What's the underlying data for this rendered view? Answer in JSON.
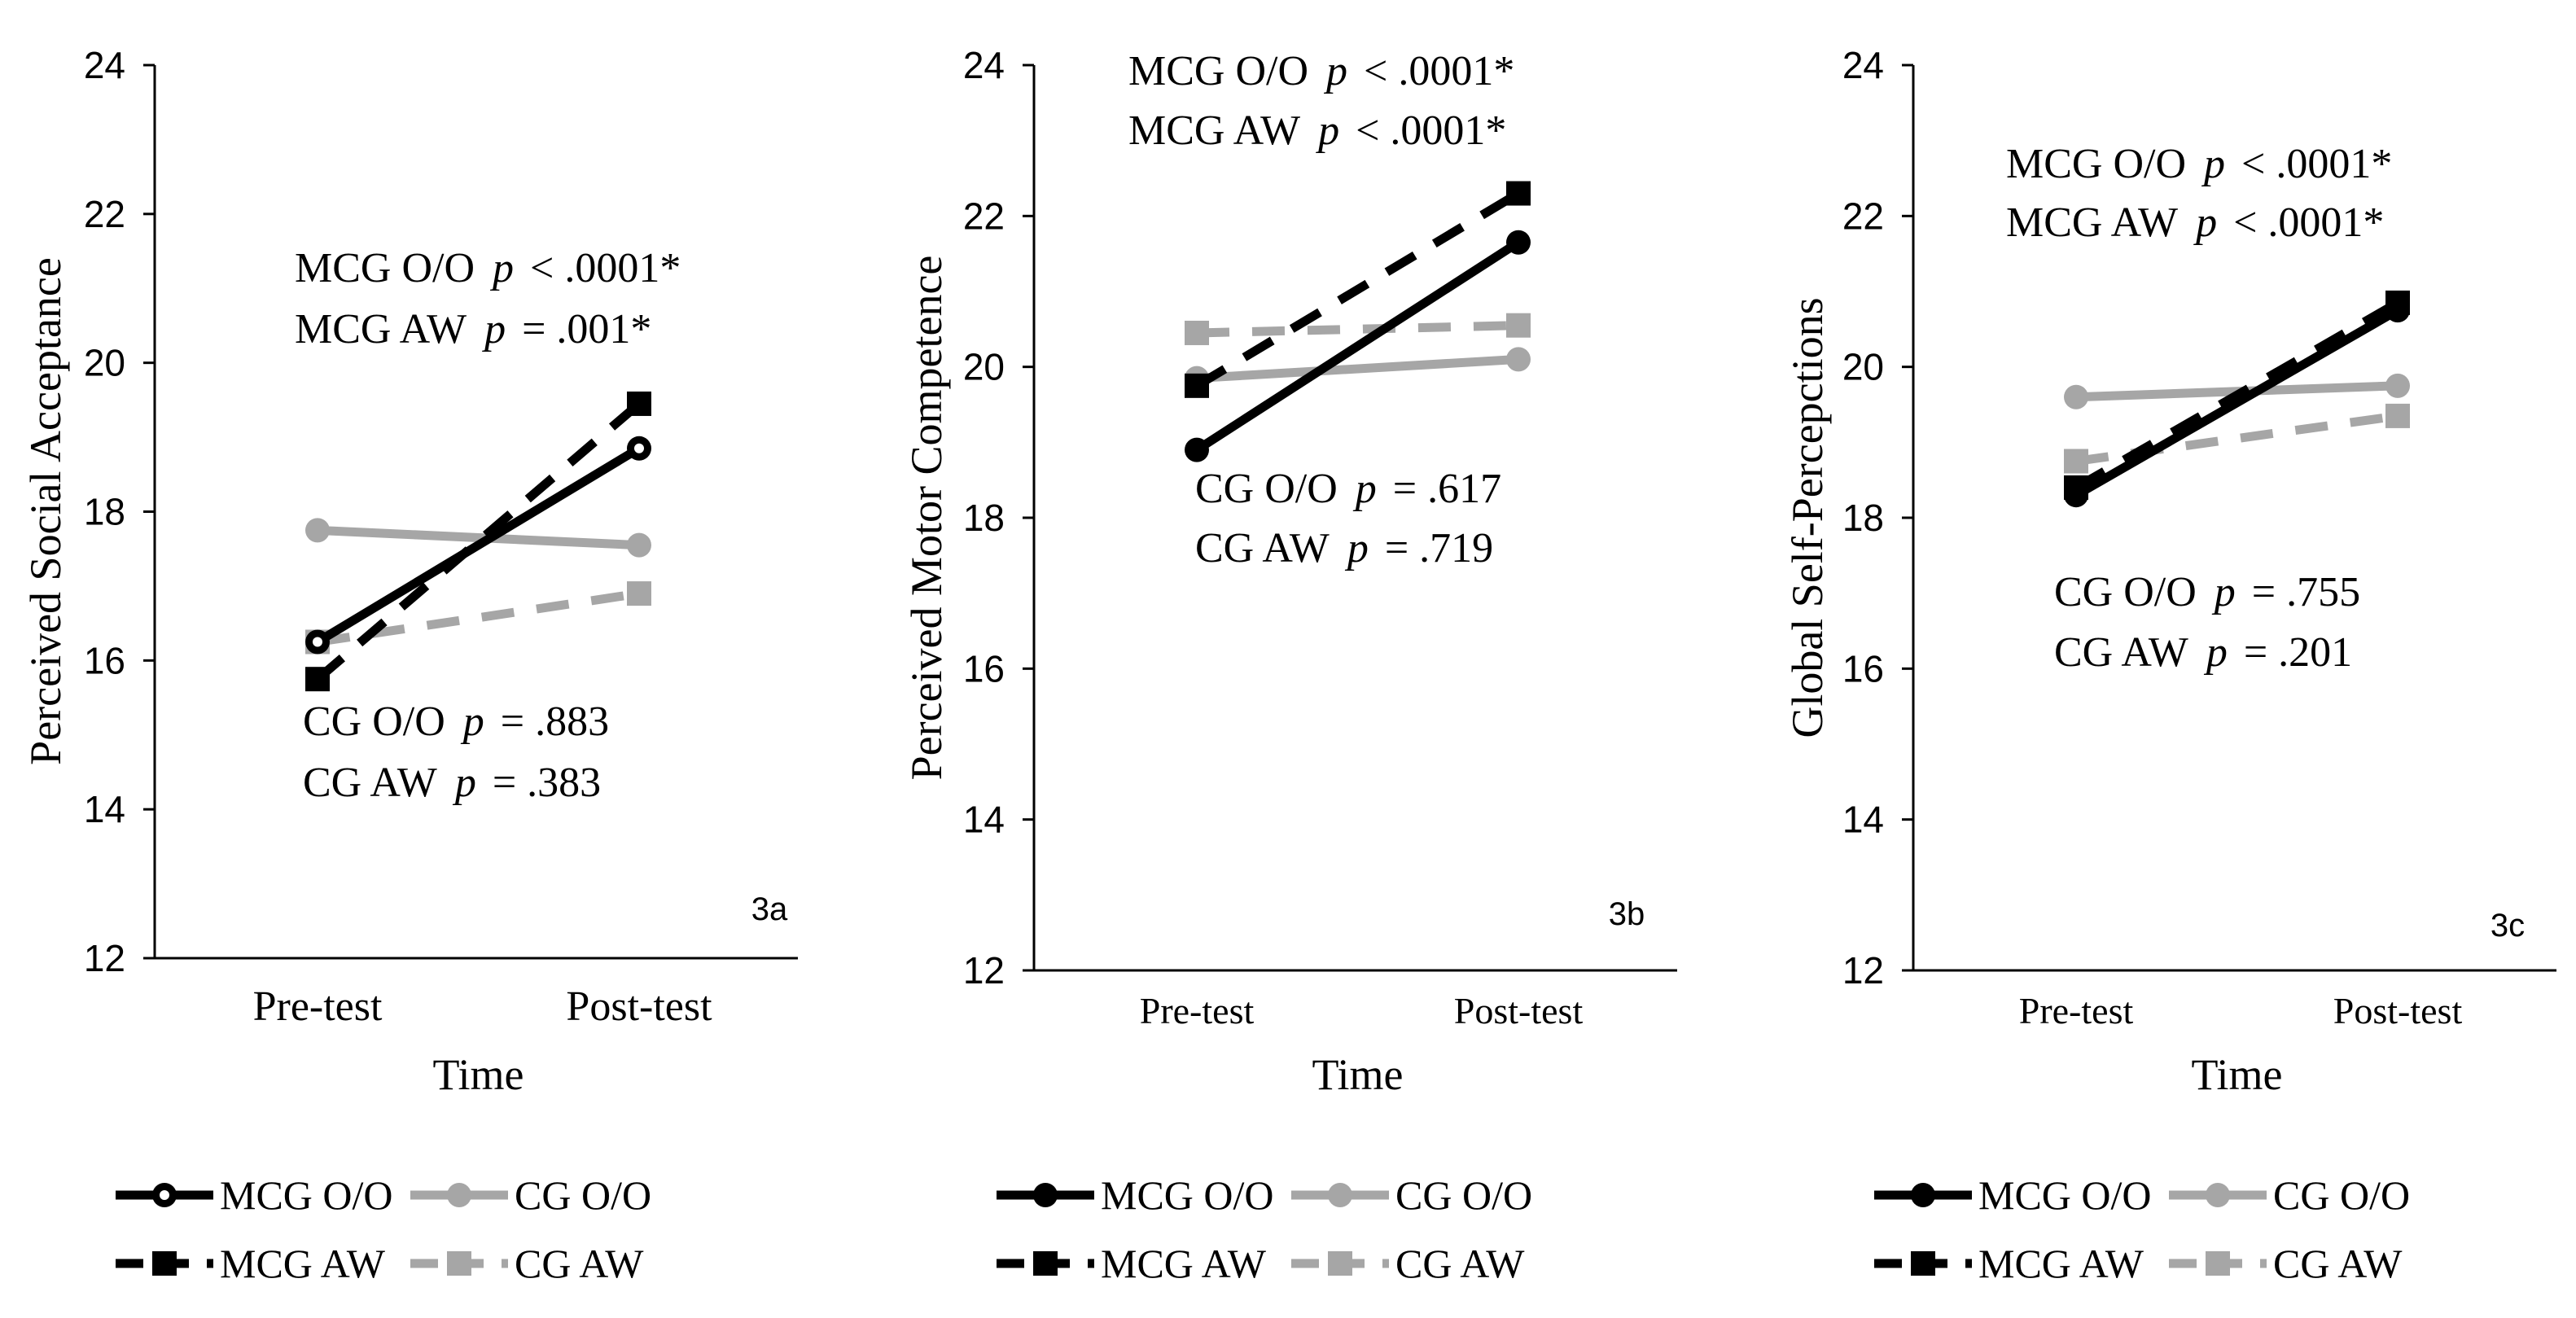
{
  "chart_data": [
    {
      "type": "line",
      "panel_label": "3a",
      "categories": [
        "Pre-test",
        "Post-test"
      ],
      "xlabel": "Time",
      "ylabel": "Perceived Social Acceptance",
      "ylim": [
        12,
        24
      ],
      "yticks": [
        "12",
        "14",
        "16",
        "18",
        "20",
        "22",
        "24"
      ],
      "series": [
        {
          "name": "MCG O/O",
          "values": [
            16.25,
            18.85
          ]
        },
        {
          "name": "CG O/O",
          "values": [
            17.75,
            17.55
          ]
        },
        {
          "name": "MCG AW",
          "values": [
            15.75,
            19.45
          ]
        },
        {
          "name": "CG AW",
          "values": [
            16.25,
            16.9
          ]
        }
      ],
      "annotations": [
        {
          "label": "MCG O/O",
          "p": "p",
          "value": "< .0001*"
        },
        {
          "label": "MCG AW",
          "p": "p",
          "value": "= .001*"
        },
        {
          "label": "CG O/O",
          "p": "p",
          "value": "= .883"
        },
        {
          "label": "CG AW",
          "p": "p",
          "value": "= .383"
        }
      ],
      "legend": [
        "MCG O/O",
        "CG O/O",
        "MCG AW",
        "CG AW"
      ]
    },
    {
      "type": "line",
      "panel_label": "3b",
      "categories": [
        "Pre-test",
        "Post-test"
      ],
      "xlabel": "Time",
      "ylabel": "Perceived Motor Competence",
      "ylim": [
        12,
        24
      ],
      "yticks": [
        "12",
        "14",
        "16",
        "18",
        "20",
        "22",
        "24"
      ],
      "series": [
        {
          "name": "MCG O/O",
          "values": [
            18.9,
            21.65
          ]
        },
        {
          "name": "CG O/O",
          "values": [
            19.85,
            20.1
          ]
        },
        {
          "name": "MCG AW",
          "values": [
            19.75,
            22.3
          ]
        },
        {
          "name": "CG AW",
          "values": [
            20.45,
            20.55
          ]
        }
      ],
      "annotations": [
        {
          "label": "MCG O/O",
          "p": "p",
          "value": "< .0001*"
        },
        {
          "label": "MCG AW",
          "p": "p",
          "value": "< .0001*"
        },
        {
          "label": "CG O/O",
          "p": "p",
          "value": "= .617"
        },
        {
          "label": "CG AW",
          "p": "p",
          "value": "= .719"
        }
      ],
      "legend": [
        "MCG O/O",
        "CG O/O",
        "MCG AW",
        "CG AW"
      ]
    },
    {
      "type": "line",
      "panel_label": "3c",
      "categories": [
        "Pre-test",
        "Post-test"
      ],
      "xlabel": "Time",
      "ylabel": "Global Self-Percepctions",
      "ylim": [
        12,
        24
      ],
      "yticks": [
        "12",
        "14",
        "16",
        "18",
        "20",
        "22",
        "24"
      ],
      "series": [
        {
          "name": "MCG O/O",
          "values": [
            18.3,
            20.75
          ]
        },
        {
          "name": "CG O/O",
          "values": [
            19.6,
            19.75
          ]
        },
        {
          "name": "MCG AW",
          "values": [
            18.4,
            20.85
          ]
        },
        {
          "name": "CG AW",
          "values": [
            18.75,
            19.35
          ]
        }
      ],
      "annotations": [
        {
          "label": "MCG O/O",
          "p": "p",
          "value": "< .0001*"
        },
        {
          "label": "MCG AW",
          "p": "p",
          "value": "< .0001*"
        },
        {
          "label": "CG O/O",
          "p": "p",
          "value": "= .755"
        },
        {
          "label": "CG AW",
          "p": "p",
          "value": "= .201"
        }
      ],
      "legend": [
        "MCG O/O",
        "CG O/O",
        "MCG AW",
        "CG AW"
      ]
    }
  ],
  "colors": {
    "mcg": "#000000",
    "cg": "#a6a6a6",
    "axis": "#000000"
  }
}
